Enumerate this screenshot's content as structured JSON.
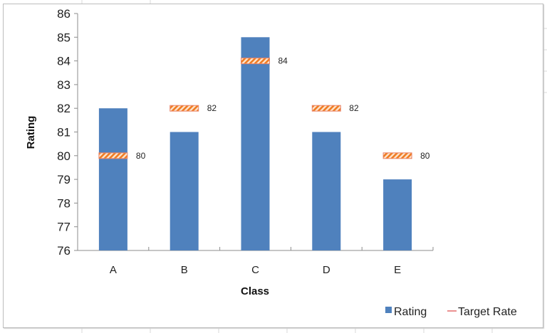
{
  "chart_data": {
    "type": "bar",
    "title": "",
    "xlabel": "Class",
    "ylabel": "Rating",
    "ylim": [
      76,
      86
    ],
    "yticks": [
      76,
      77,
      78,
      79,
      80,
      81,
      82,
      83,
      84,
      85,
      86
    ],
    "categories": [
      "A",
      "B",
      "C",
      "D",
      "E"
    ],
    "series": [
      {
        "name": "Rating",
        "type": "bar",
        "color": "#4f81bd",
        "values": [
          82,
          81,
          85,
          81,
          79
        ]
      },
      {
        "name": "Target Rate",
        "type": "marker",
        "color": "#f79646",
        "values": [
          80,
          82,
          84,
          82,
          80
        ],
        "data_labels": [
          "80",
          "82",
          "84",
          "82",
          "80"
        ]
      }
    ],
    "legend": {
      "position": "bottom-right",
      "entries": [
        "Rating",
        "Target Rate"
      ]
    },
    "grid": false
  },
  "legend": {
    "rating_label": "Rating",
    "target_label": "Target Rate"
  },
  "axes": {
    "x_title": "Class",
    "y_title": "Rating"
  }
}
